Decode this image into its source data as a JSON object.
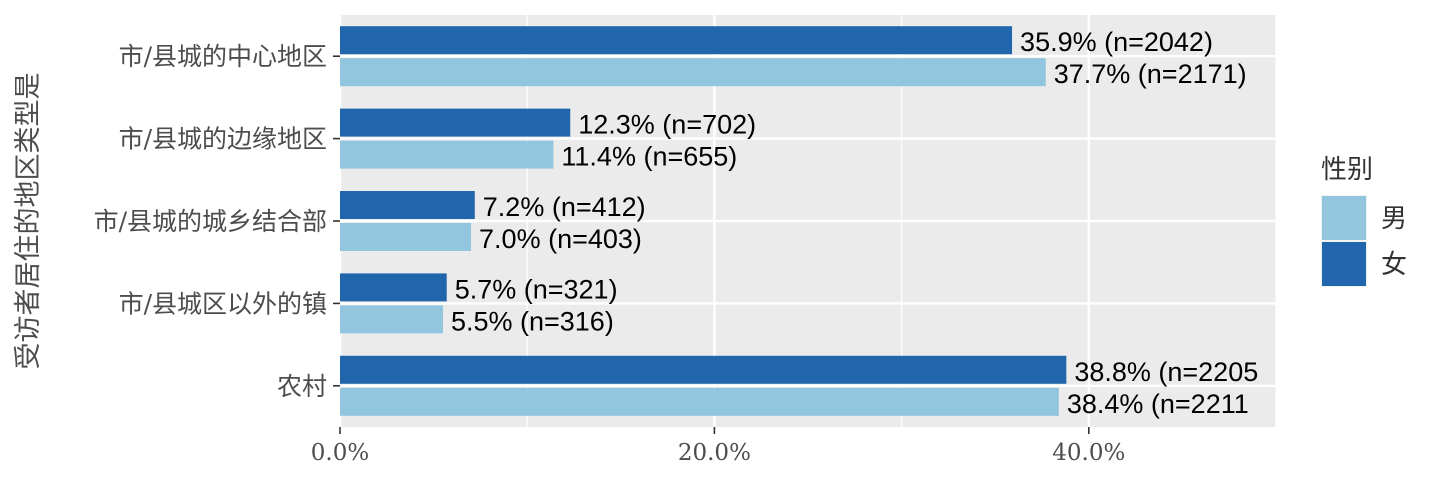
{
  "chart_data": {
    "type": "bar",
    "orientation": "horizontal",
    "categories": [
      "农村",
      "市/县城区以外的镇",
      "市/县城的城乡结合部",
      "市/县城的边缘地区",
      "市/县城的中心地区"
    ],
    "series": [
      {
        "name": "女",
        "color": "#2166ac",
        "values": [
          38.8,
          5.7,
          7.2,
          12.3,
          35.9
        ],
        "labels": [
          "38.8% (n=2205",
          "5.7% (n=321)",
          "7.2% (n=412)",
          "12.3% (n=702)",
          "35.9% (n=2042)"
        ]
      },
      {
        "name": "男",
        "color": "#92c5de",
        "values": [
          38.4,
          5.5,
          7.0,
          11.4,
          37.7
        ],
        "labels": [
          "38.4% (n=2211",
          "5.5% (n=316)",
          "7.0% (n=403)",
          "11.4% (n=655)",
          "37.7% (n=2171)"
        ]
      }
    ],
    "xlabel": "",
    "ylabel": "受访者居住的地区类型是",
    "xlim": [
      0,
      50
    ],
    "xticks": [
      0,
      20,
      40
    ],
    "xtick_labels": [
      "0.0%",
      "20.0%",
      "40.0%"
    ],
    "grid": true,
    "legend": {
      "title": "性别",
      "position": "right",
      "entries": [
        "男",
        "女"
      ]
    }
  }
}
